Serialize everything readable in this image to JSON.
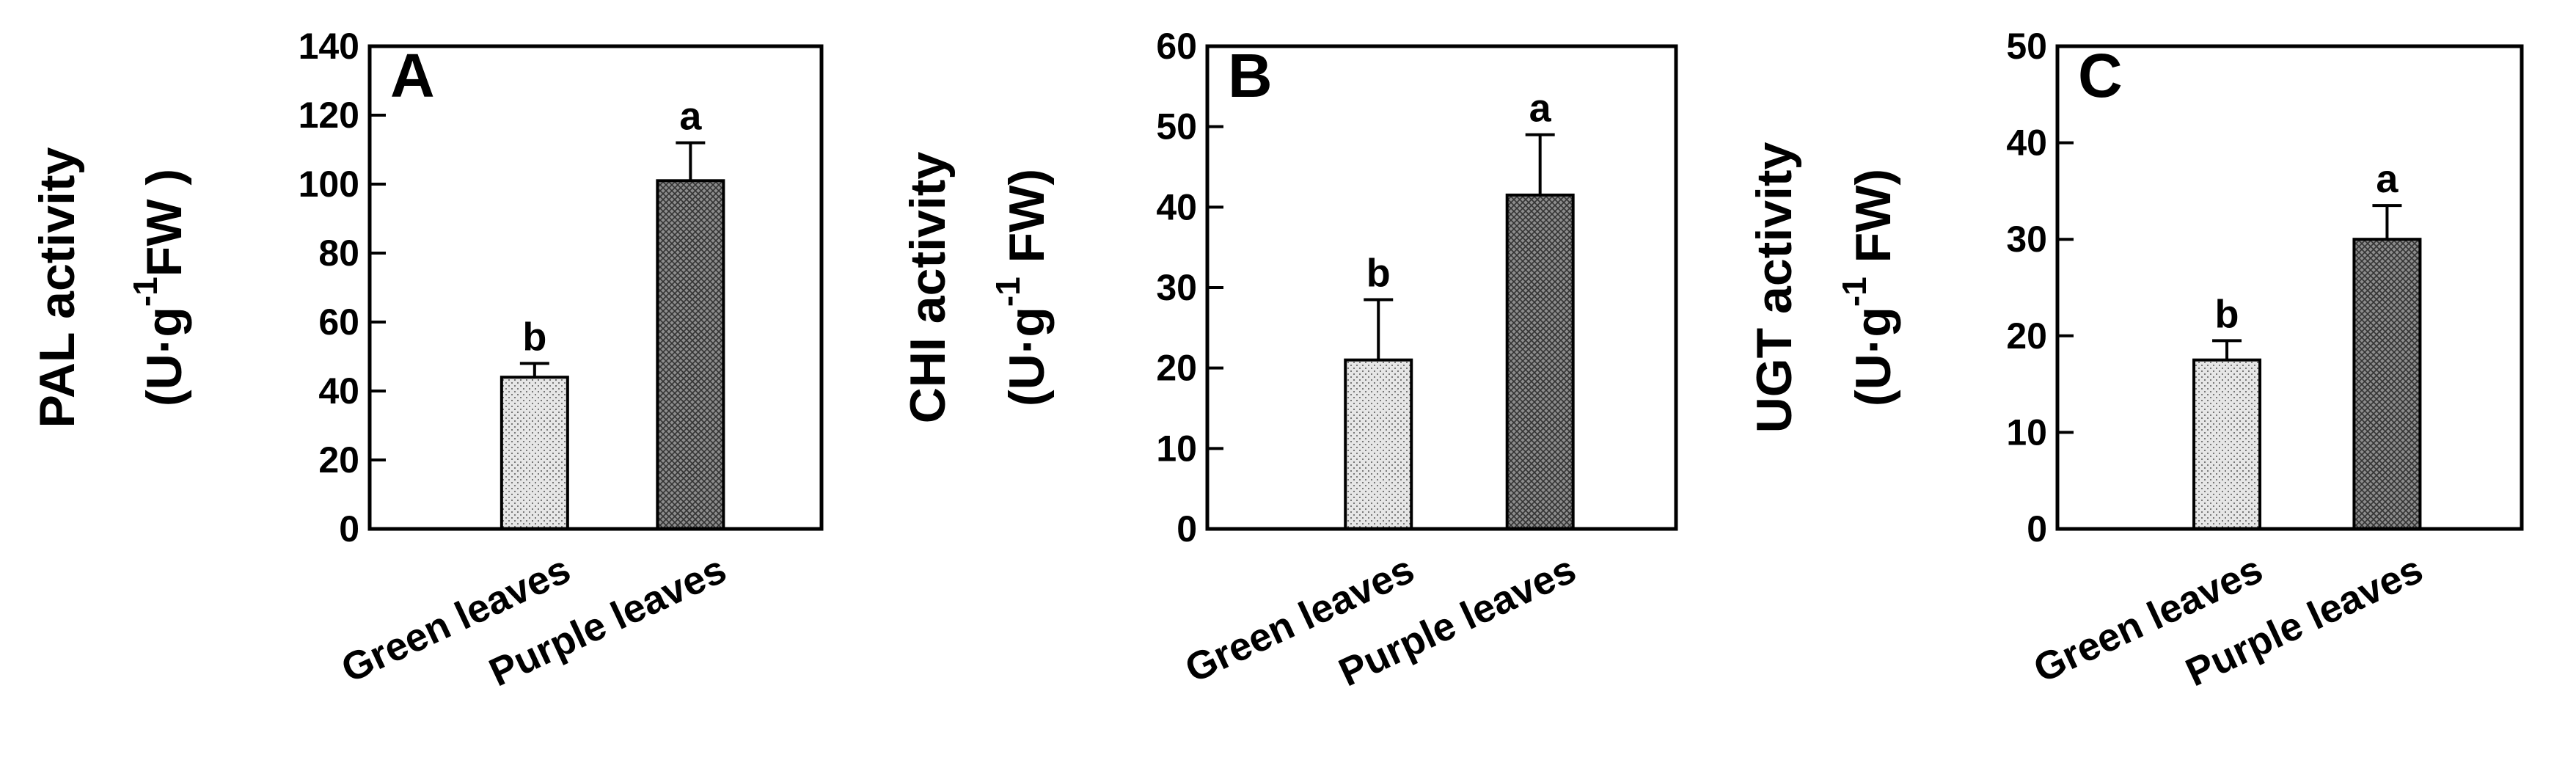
{
  "chart_data": [
    {
      "type": "bar",
      "panel_label": "A",
      "ylabel": "PAL activity",
      "yunit": {
        "base": "(U·g",
        "sup": "-1",
        "rest": "FW )"
      },
      "categories": [
        "Green leaves",
        "Purple leaves"
      ],
      "values": [
        44,
        101
      ],
      "errors": [
        4,
        11
      ],
      "annotations": [
        "b",
        "a"
      ],
      "colors": [
        "#e6e6e6",
        "#8c8c8c"
      ],
      "ylim": [
        0,
        140
      ],
      "yticks": [
        0,
        20,
        40,
        60,
        80,
        100,
        120,
        140
      ]
    },
    {
      "type": "bar",
      "panel_label": "B",
      "ylabel": "CHI activity",
      "yunit": {
        "base": "(U·g",
        "sup": "-1",
        "rest": " FW)"
      },
      "categories": [
        "Green leaves",
        "Purple leaves"
      ],
      "values": [
        21,
        41.5
      ],
      "errors": [
        7.5,
        7.5
      ],
      "annotations": [
        "b",
        "a"
      ],
      "colors": [
        "#e6e6e6",
        "#8c8c8c"
      ],
      "ylim": [
        0,
        60
      ],
      "yticks": [
        0,
        10,
        20,
        30,
        40,
        50,
        60
      ]
    },
    {
      "type": "bar",
      "panel_label": "C",
      "ylabel": "UGT activity",
      "yunit": {
        "base": "(U·g",
        "sup": "-1",
        "rest": " FW)"
      },
      "categories": [
        "Green leaves",
        "Purple leaves"
      ],
      "values": [
        17.5,
        30
      ],
      "errors": [
        2,
        3.5
      ],
      "annotations": [
        "b",
        "a"
      ],
      "colors": [
        "#e6e6e6",
        "#8c8c8c"
      ],
      "ylim": [
        0,
        50
      ],
      "yticks": [
        0,
        10,
        20,
        30,
        40,
        50
      ]
    }
  ]
}
